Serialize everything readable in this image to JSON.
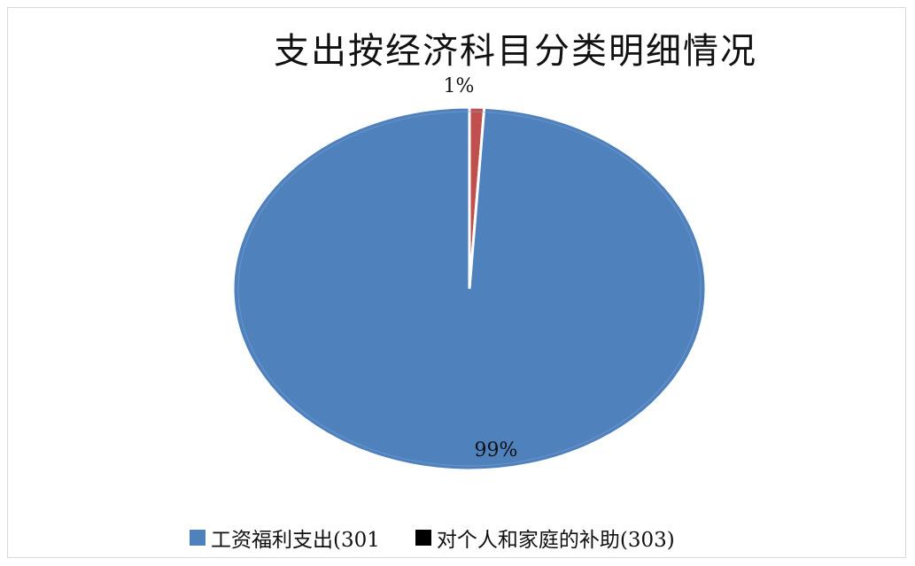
{
  "chart_data": {
    "type": "pie",
    "title": "支出按经济科目分类明细情况",
    "categories": [
      "工资福利支出(301",
      "对个人和家庭的补助(303)"
    ],
    "values": [
      99,
      1
    ],
    "data_labels": [
      "99%",
      "1%"
    ],
    "colors": [
      "#4f81bd",
      "#000000"
    ],
    "slice_colors": [
      "#4f81bd",
      "#c0504d"
    ],
    "legend_position": "bottom"
  }
}
